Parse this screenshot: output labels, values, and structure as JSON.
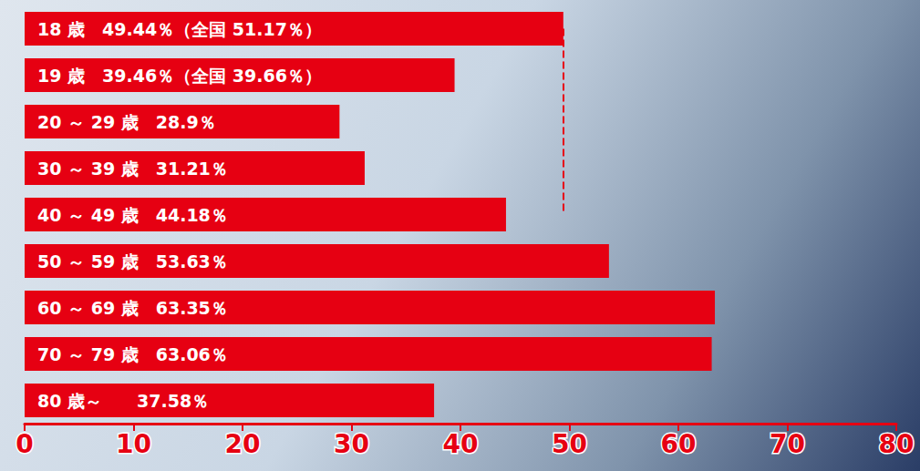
{
  "chart_data": {
    "type": "bar",
    "orientation": "horizontal",
    "categories": [
      "18歳",
      "19歳",
      "20～29歳",
      "30～39歳",
      "40～49歳",
      "50～59歳",
      "60～69歳",
      "70～79歳",
      "80歳～"
    ],
    "values": [
      49.44,
      39.46,
      28.9,
      31.21,
      44.18,
      53.63,
      63.35,
      63.06,
      37.58
    ],
    "value_labels": [
      "18 歳　49.44％（全国 51.17％）",
      "19 歳　39.46％（全国 39.66％）",
      "20 ～ 29 歳　28.9％",
      "30 ～ 39 歳　31.21％",
      "40 ～ 49 歳　44.18％",
      "50 ～ 59 歳　53.63％",
      "60 ～ 69 歳　63.35％",
      "70 ～ 79 歳　63.06％",
      "80 歳～　　37.58％"
    ],
    "color": "#e60012",
    "xlim": [
      0,
      80
    ],
    "xticks": [
      0,
      10,
      20,
      30,
      40,
      50,
      60,
      70,
      80
    ],
    "grid": false,
    "data_labels": true,
    "tick_labels": "x"
  }
}
